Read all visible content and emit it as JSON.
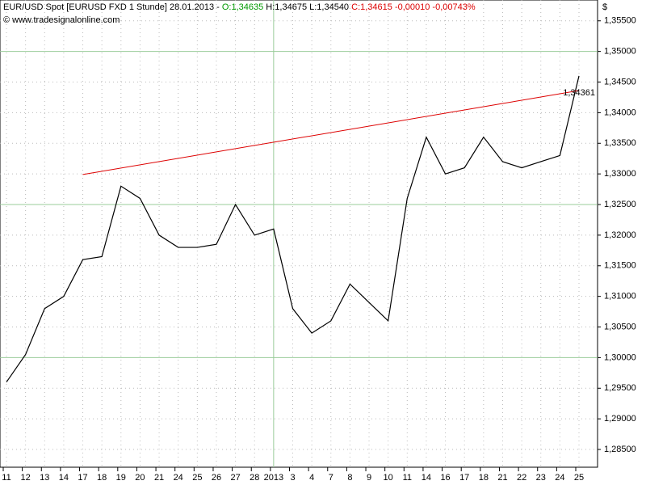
{
  "chart_data": {
    "type": "line",
    "title": "EUR/USD Spot [EURUSD FXD  1 Stunde] 28.01.2013 -",
    "open_label": "O:1,34635",
    "hl_label": "H:1,34675 L:1,34540",
    "close_label": "C:1,34615 -0,00010 -0,00743%",
    "copyright": "© www.tradesignalonline.com",
    "currency": "$",
    "categories": [
      "11",
      "12",
      "13",
      "14",
      "17",
      "18",
      "19",
      "20",
      "21",
      "24",
      "25",
      "26",
      "27",
      "28",
      "2013",
      "3",
      "4",
      "7",
      "8",
      "9",
      "10",
      "11",
      "14",
      "16",
      "17",
      "18",
      "21",
      "22",
      "23",
      "24",
      "25"
    ],
    "series": [
      {
        "name": "EUR/USD",
        "color": "#000000",
        "values": [
          1.296,
          1.3005,
          1.308,
          1.31,
          1.316,
          1.3165,
          1.328,
          1.326,
          1.32,
          1.318,
          1.318,
          1.3185,
          1.325,
          1.32,
          1.321,
          1.308,
          1.304,
          1.306,
          1.312,
          1.309,
          1.306,
          1.326,
          1.336,
          1.33,
          1.331,
          1.336,
          1.332,
          1.331,
          1.332,
          1.333,
          1.346
        ]
      }
    ],
    "trendline": {
      "color": "#dd0000",
      "start_index": 4,
      "end_index": 30,
      "start": 1.3299,
      "end": 1.34361,
      "label": "1,34361"
    },
    "ylim": [
      1.2821,
      1.3584
    ],
    "yticks": [
      {
        "value": 1.285,
        "label": "1,28500"
      },
      {
        "value": 1.29,
        "label": "1,29000"
      },
      {
        "value": 1.295,
        "label": "1,29500"
      },
      {
        "value": 1.3,
        "label": "1,30000"
      },
      {
        "value": 1.305,
        "label": "1,30500"
      },
      {
        "value": 1.31,
        "label": "1,31000"
      },
      {
        "value": 1.315,
        "label": "1,31500"
      },
      {
        "value": 1.32,
        "label": "1,32000"
      },
      {
        "value": 1.325,
        "label": "1,32500"
      },
      {
        "value": 1.33,
        "label": "1,33000"
      },
      {
        "value": 1.335,
        "label": "1,33500"
      },
      {
        "value": 1.34,
        "label": "1,34000"
      },
      {
        "value": 1.345,
        "label": "1,34500"
      },
      {
        "value": 1.35,
        "label": "1,35000"
      },
      {
        "value": 1.355,
        "label": "1,35500"
      }
    ],
    "major_yticks": [
      1.3,
      1.325,
      1.35
    ],
    "grid": true
  }
}
